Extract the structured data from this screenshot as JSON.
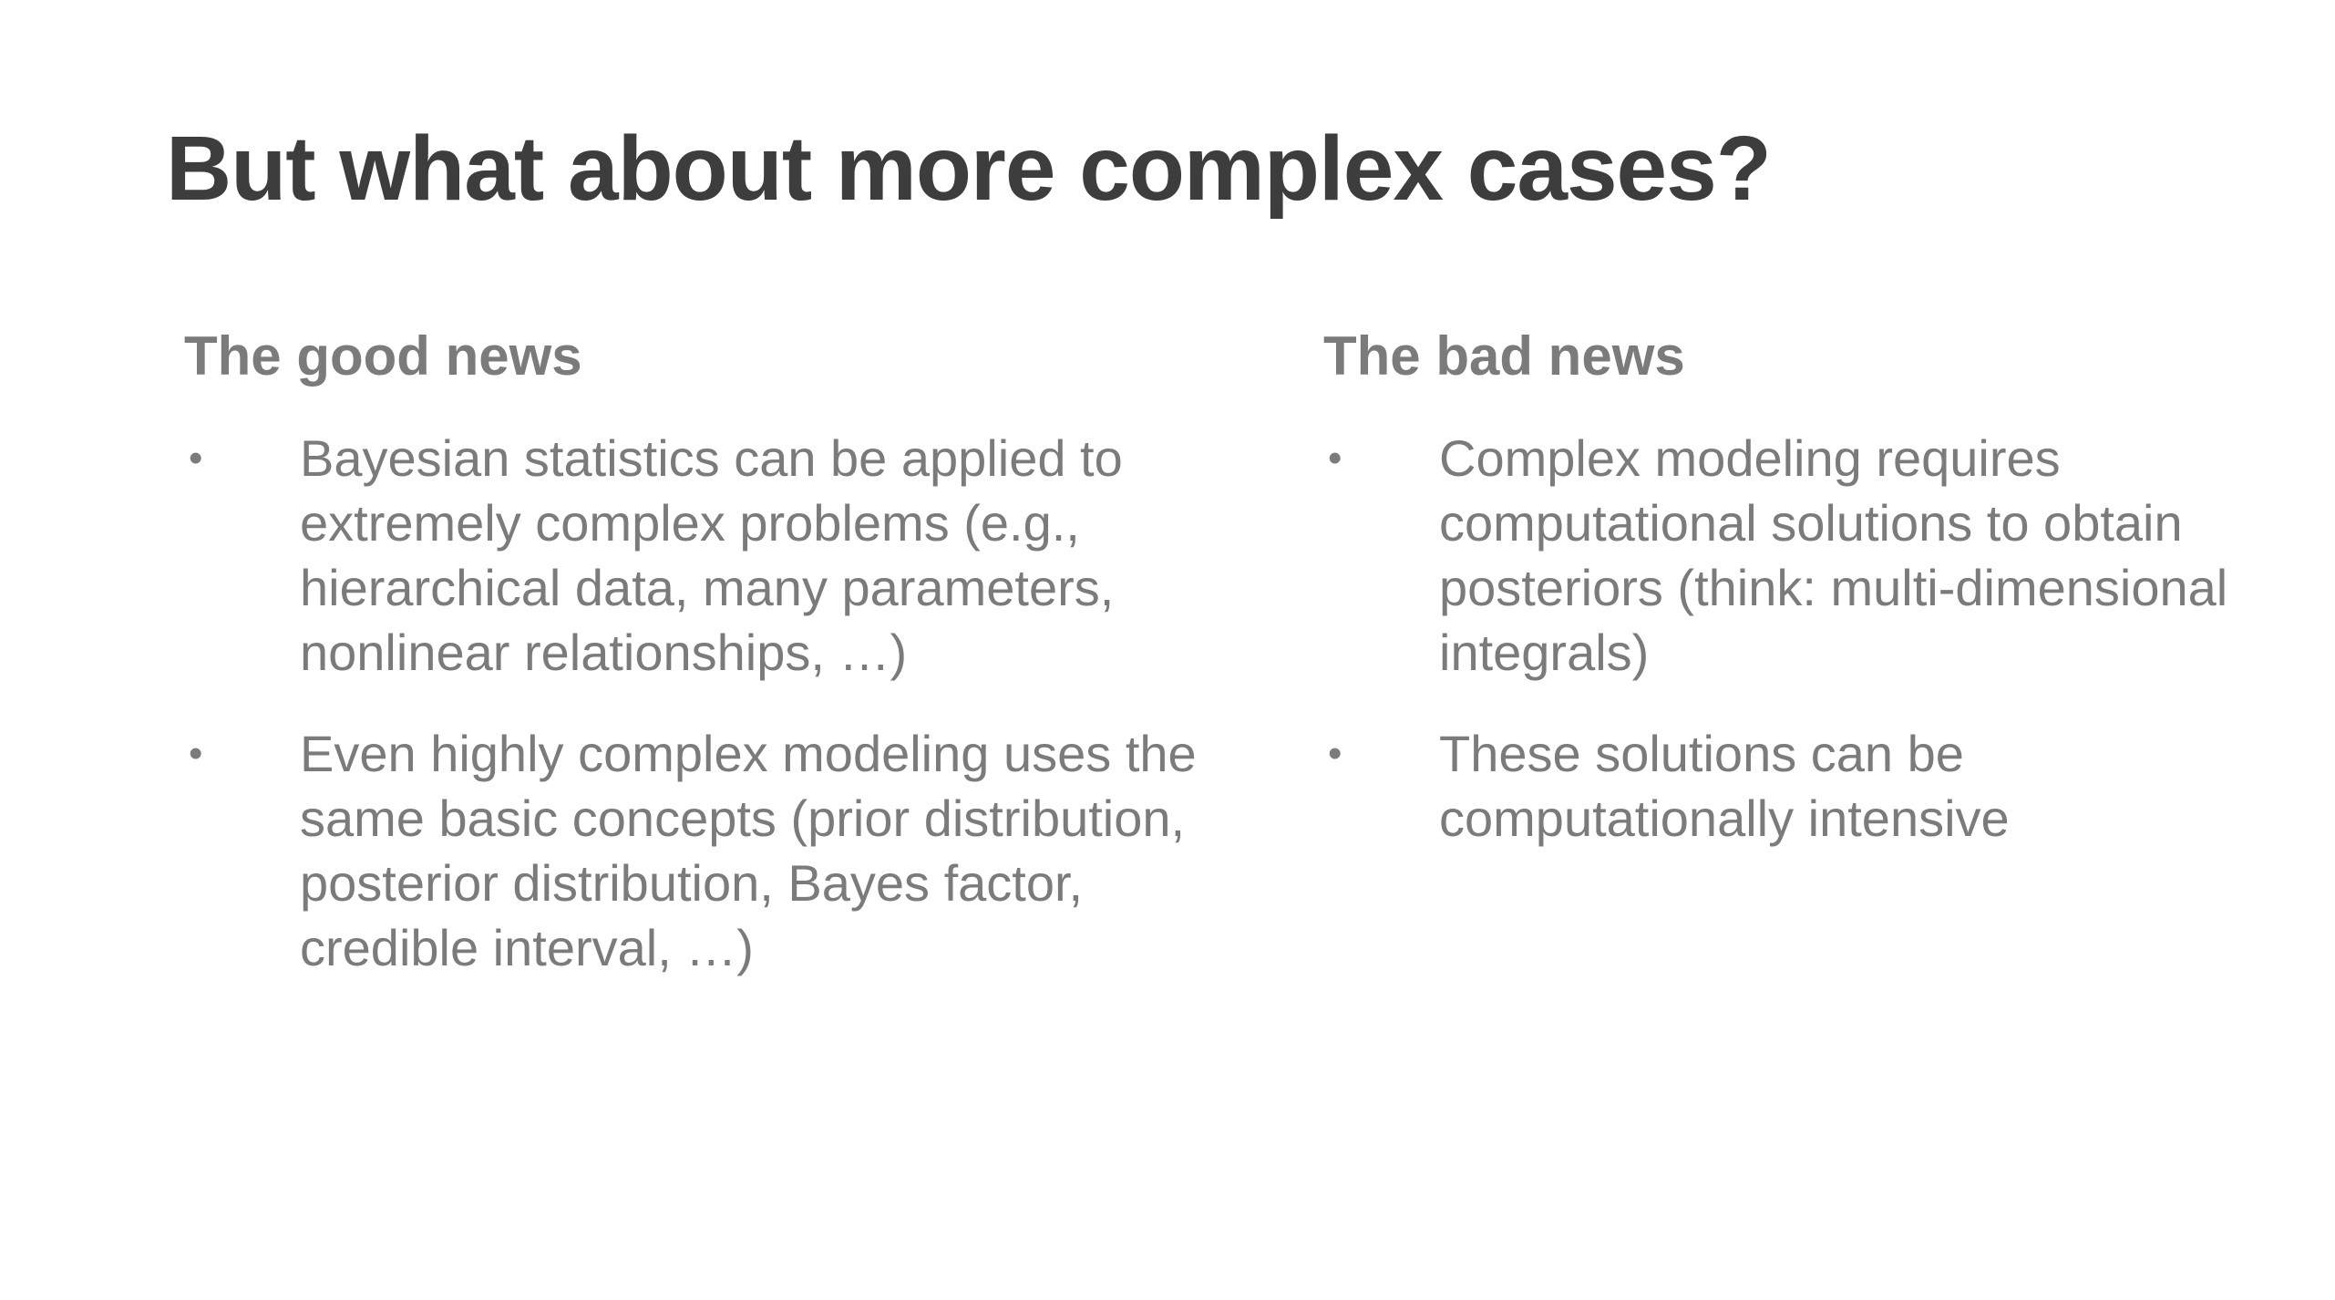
{
  "slide": {
    "title": "But what about more complex cases?",
    "left_column": {
      "heading": "The good news",
      "bullets": [
        "Bayesian statistics can be applied to extremely complex problems (e.g., hierarchical data, many parameters, nonlinear relationships, …)",
        "Even highly complex modeling uses the same basic concepts (prior distribution, posterior distribution, Bayes factor, credible interval, …)"
      ]
    },
    "right_column": {
      "heading": "The bad news",
      "bullets": [
        "Complex modeling requires computational solutions to obtain posteriors (think: multi-dimensional integrals)",
        "These solutions can be computationally intensive"
      ]
    },
    "bullet_glyph": "•",
    "colors": {
      "title": "#3d3d3d",
      "body": "#7b7b7b",
      "background": "#ffffff"
    }
  }
}
